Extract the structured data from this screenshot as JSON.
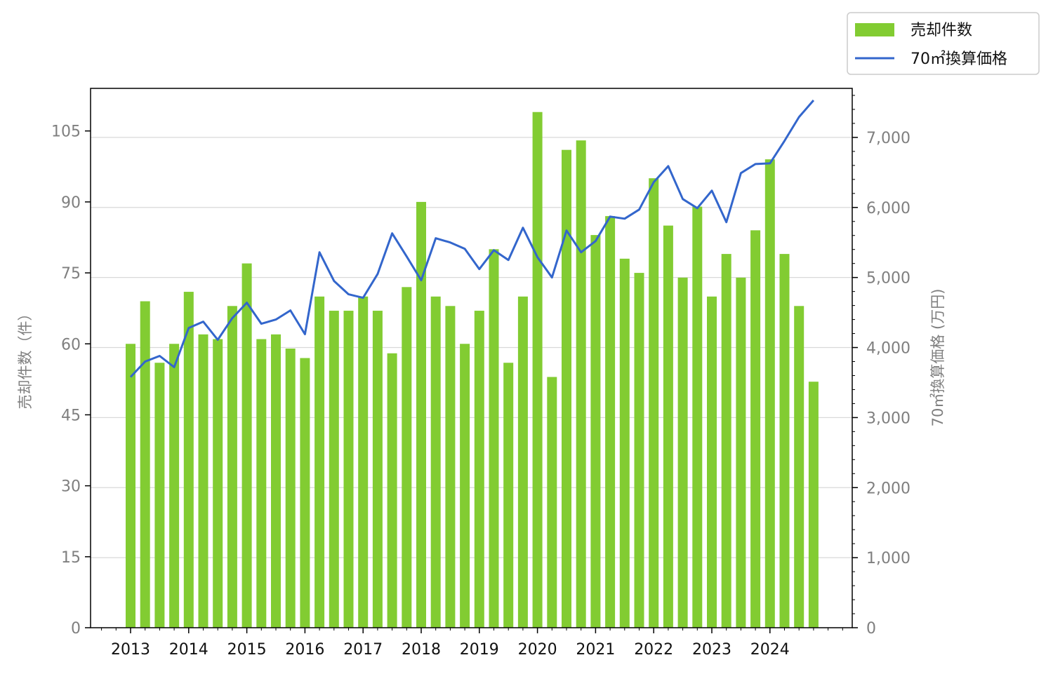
{
  "chart_data": {
    "type": "bar",
    "x": [
      "2013-Q1",
      "2013-Q2",
      "2013-Q3",
      "2013-Q4",
      "2014-Q1",
      "2014-Q2",
      "2014-Q3",
      "2014-Q4",
      "2015-Q1",
      "2015-Q2",
      "2015-Q3",
      "2015-Q4",
      "2016-Q1",
      "2016-Q2",
      "2016-Q3",
      "2016-Q4",
      "2017-Q1",
      "2017-Q2",
      "2017-Q3",
      "2017-Q4",
      "2018-Q1",
      "2018-Q2",
      "2018-Q3",
      "2018-Q4",
      "2019-Q1",
      "2019-Q2",
      "2019-Q3",
      "2019-Q4",
      "2020-Q1",
      "2020-Q2",
      "2020-Q3",
      "2020-Q4",
      "2021-Q1",
      "2021-Q2",
      "2021-Q3",
      "2021-Q4",
      "2022-Q1",
      "2022-Q2",
      "2022-Q3",
      "2022-Q4",
      "2023-Q1",
      "2023-Q2",
      "2023-Q3",
      "2023-Q4",
      "2024-Q1",
      "2024-Q2",
      "2024-Q3",
      "2024-Q4"
    ],
    "x_tick_labels": [
      "2013",
      "2014",
      "2015",
      "2016",
      "2017",
      "2018",
      "2019",
      "2020",
      "2021",
      "2022",
      "2023",
      "2024"
    ],
    "series": [
      {
        "name": "売却件数",
        "type": "bar",
        "axis": "left",
        "color": "#82cc32",
        "values": [
          60,
          69,
          56,
          60,
          71,
          62,
          61,
          68,
          77,
          61,
          62,
          59,
          57,
          70,
          67,
          67,
          70,
          67,
          58,
          72,
          90,
          70,
          68,
          60,
          67,
          80,
          56,
          70,
          109,
          53,
          101,
          103,
          83,
          87,
          78,
          75,
          95,
          85,
          74,
          89,
          70,
          79,
          74,
          84,
          99,
          79,
          68,
          52
        ]
      },
      {
        "name": "70㎡換算価格",
        "type": "line",
        "axis": "right",
        "color": "#3366cc",
        "values": [
          3580,
          3800,
          3880,
          3720,
          4280,
          4370,
          4110,
          4420,
          4640,
          4340,
          4400,
          4530,
          4190,
          5360,
          4950,
          4760,
          4710,
          5050,
          5630,
          5300,
          4960,
          5560,
          5500,
          5410,
          5120,
          5390,
          5250,
          5710,
          5290,
          5000,
          5670,
          5360,
          5520,
          5870,
          5840,
          5970,
          6360,
          6590,
          6120,
          5990,
          6240,
          5790,
          6490,
          6620,
          6630,
          6950,
          7290,
          7530
        ]
      }
    ],
    "ylabel": "売却件数（件）",
    "ylabel_right": "70㎡換算価格 (万円)",
    "ylim": [
      0,
      114
    ],
    "ylim_right": [
      0,
      7700
    ],
    "yticks": [
      0,
      15,
      30,
      45,
      60,
      75,
      90,
      105
    ],
    "yticks_right": [
      0,
      1000,
      2000,
      3000,
      4000,
      5000,
      6000,
      7000
    ],
    "ytick_labels_right": [
      "0",
      "1,000",
      "2,000",
      "3,000",
      "4,000",
      "5,000",
      "6,000",
      "7,000"
    ],
    "grid": "horizontal",
    "legend": "top-right"
  }
}
